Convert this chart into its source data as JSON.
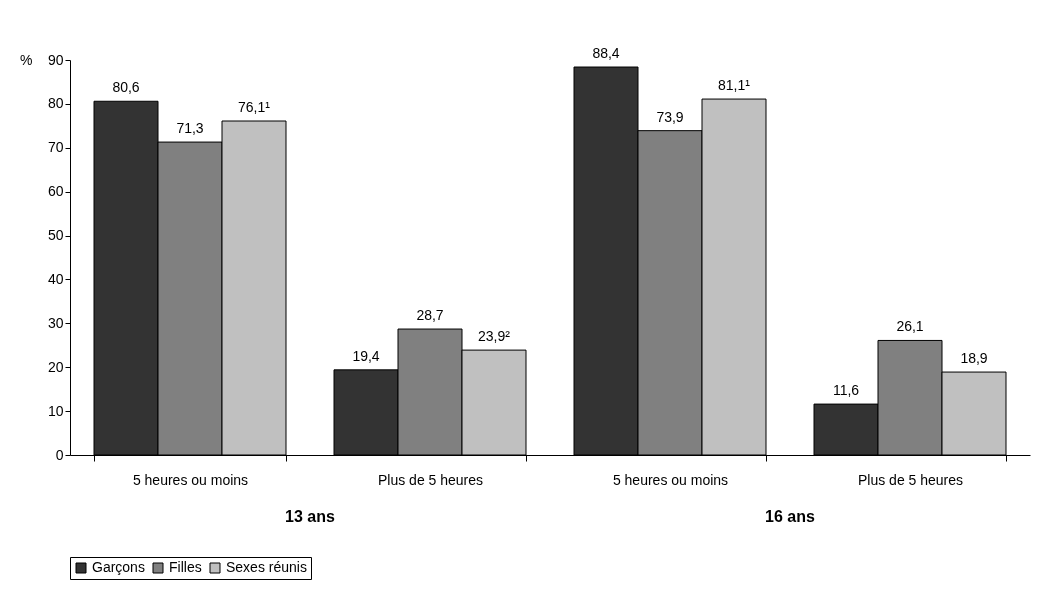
{
  "chart_data": {
    "type": "bar",
    "ylabel": "%",
    "categories": [
      "5 heures ou moins",
      "Plus de 5 heures",
      "5 heures ou moins",
      "Plus de 5 heures"
    ],
    "series": [
      {
        "name": "Garçons",
        "color": "#333333",
        "values": [
          80.6,
          19.4,
          88.4,
          11.6
        ],
        "value_labels": [
          "80,6",
          "19,4",
          "88,4",
          "11,6"
        ]
      },
      {
        "name": "Filles",
        "color": "#808080",
        "values": [
          71.3,
          28.7,
          73.9,
          26.1
        ],
        "value_labels": [
          "71,3",
          "28,7",
          "73,9",
          "26,1"
        ]
      },
      {
        "name": "Sexes réunis",
        "color": "#c0c0c0",
        "values": [
          76.1,
          23.9,
          81.1,
          18.9
        ],
        "value_labels": [
          "76,1¹",
          "23,9²",
          "81,1¹",
          "18,9"
        ]
      }
    ],
    "ylim": [
      0,
      90
    ],
    "yticks": [
      0,
      10,
      20,
      30,
      40,
      50,
      60,
      70,
      80,
      90
    ],
    "grid": false,
    "legend": "bottom",
    "annotations": [
      "13 ans",
      "16 ans"
    ]
  }
}
